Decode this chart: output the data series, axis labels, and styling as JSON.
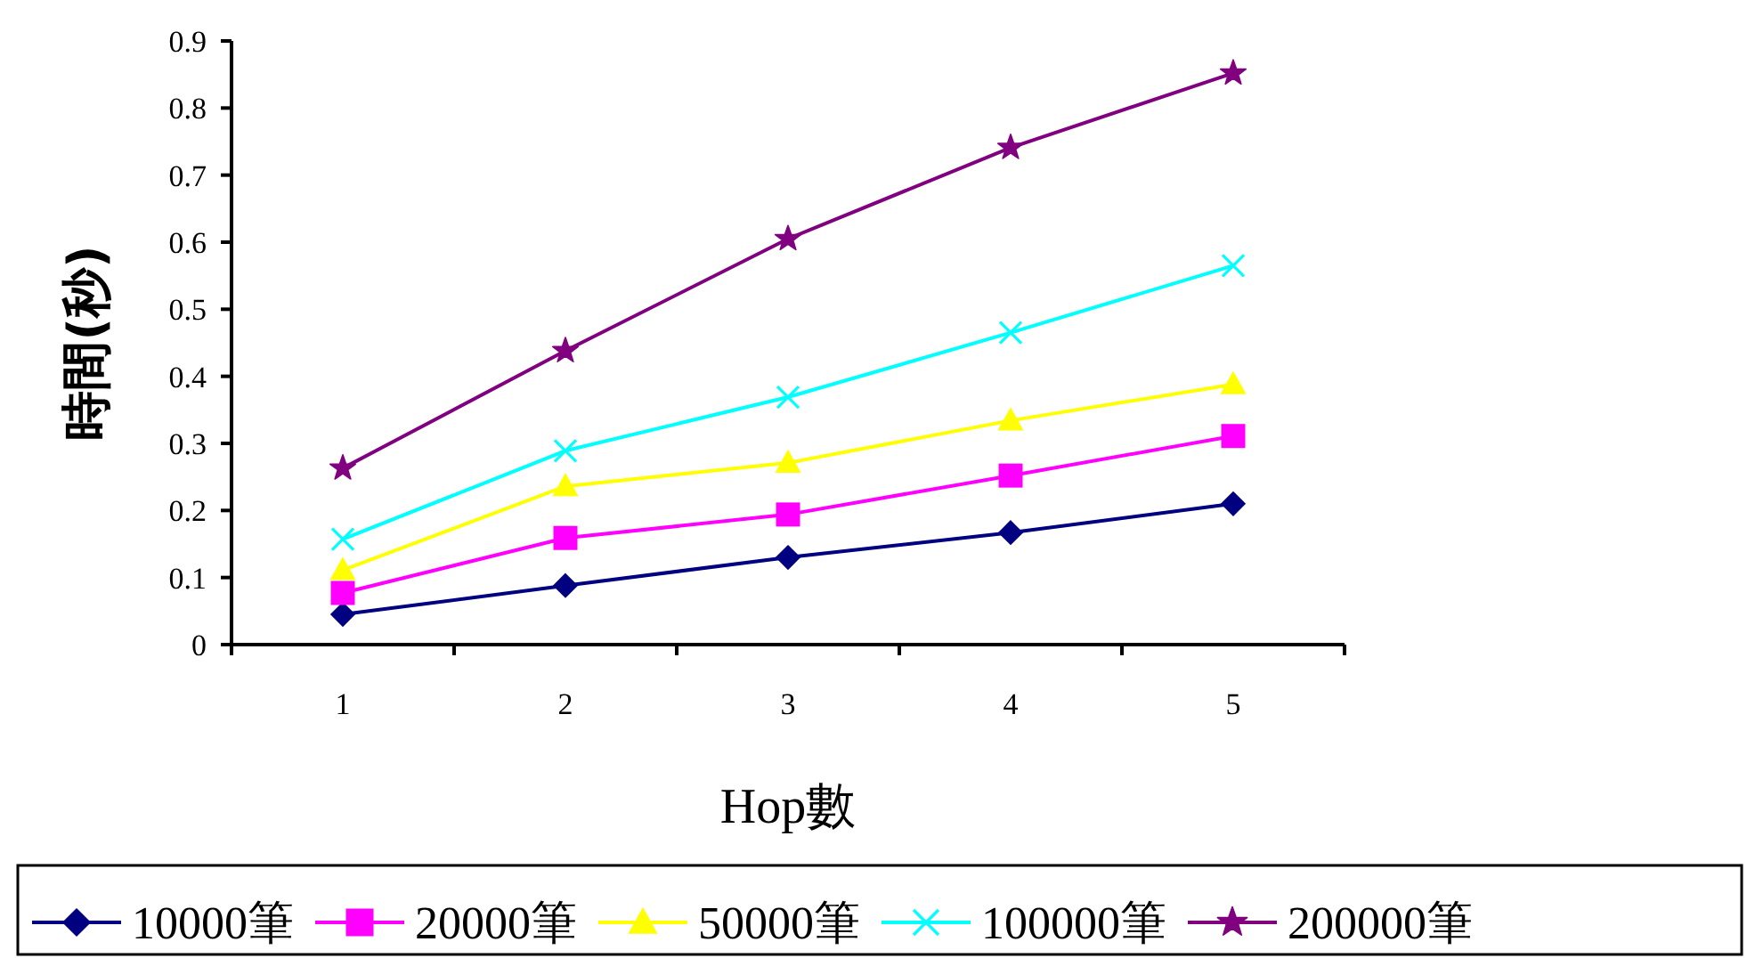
{
  "chart_data": {
    "type": "line",
    "xlabel": "Hop數",
    "ylabel": "時間(秒)",
    "categories": [
      "1",
      "2",
      "3",
      "4",
      "5"
    ],
    "ylim": [
      0,
      0.9
    ],
    "yticks": [
      0,
      0.1,
      0.2,
      0.3,
      0.4,
      0.5,
      0.6,
      0.7,
      0.8,
      0.9
    ],
    "grid": false,
    "legend": "bottom",
    "line_style": "solid",
    "series": [
      {
        "name": "10000筆",
        "color": "#000080",
        "marker": "diamond",
        "values": [
          0.045,
          0.088,
          0.13,
          0.167,
          0.21
        ]
      },
      {
        "name": "20000筆",
        "color": "#ff00ff",
        "marker": "square",
        "values": [
          0.077,
          0.159,
          0.194,
          0.252,
          0.311
        ]
      },
      {
        "name": "50000筆",
        "color": "#ffff00",
        "marker": "triangle",
        "values": [
          0.111,
          0.236,
          0.271,
          0.334,
          0.388
        ]
      },
      {
        "name": "100000筆",
        "color": "#00ffff",
        "marker": "cross",
        "values": [
          0.157,
          0.289,
          0.369,
          0.465,
          0.565
        ]
      },
      {
        "name": "200000筆",
        "color": "#800080",
        "marker": "star",
        "values": [
          0.263,
          0.438,
          0.605,
          0.741,
          0.852
        ]
      }
    ]
  }
}
